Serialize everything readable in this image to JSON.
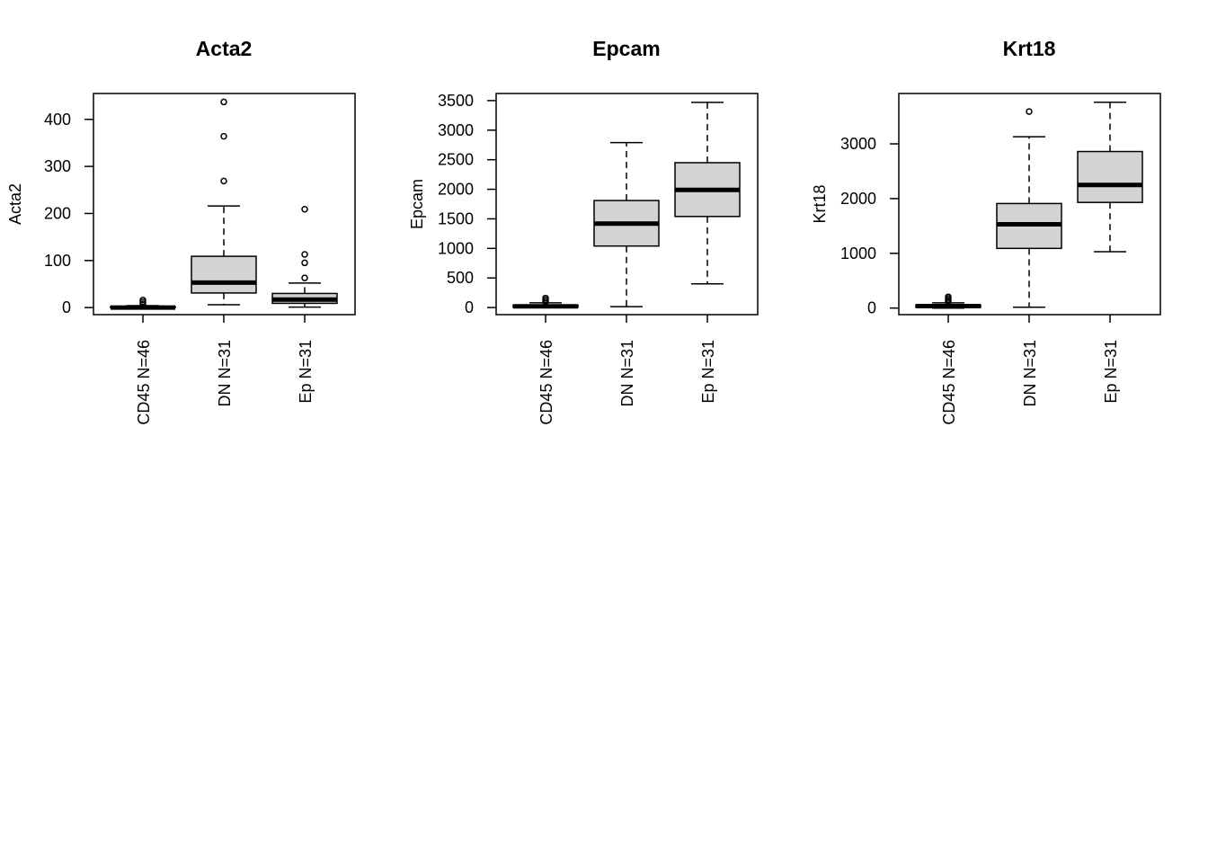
{
  "style": {
    "box_fill": "#d3d3d3",
    "line_color": "#000000",
    "background": "#ffffff"
  },
  "chart_data": [
    {
      "type": "boxplot",
      "title": "Acta2",
      "xlabel": "",
      "ylabel": "Acta2",
      "ylim": [
        -15,
        455
      ],
      "yticks": [
        0,
        100,
        200,
        300,
        400
      ],
      "ytick_labels": [
        "0",
        "100",
        "200",
        "300",
        "400"
      ],
      "categories": [
        "CD45 N=46",
        "DN N=31",
        "Ep N=31"
      ],
      "boxes": [
        {
          "whisker_low": 0,
          "q1": 0,
          "median": 0,
          "q3": 2,
          "whisker_high": 4,
          "outliers": [
            8,
            12,
            16
          ]
        },
        {
          "whisker_low": 6,
          "q1": 31,
          "median": 53,
          "q3": 109,
          "whisker_high": 216,
          "outliers": [
            269,
            364,
            437
          ]
        },
        {
          "whisker_low": 1,
          "q1": 9,
          "median": 17,
          "q3": 30,
          "whisker_high": 52,
          "outliers": [
            63,
            95,
            113,
            209
          ]
        }
      ]
    },
    {
      "type": "boxplot",
      "title": "Epcam",
      "xlabel": "",
      "ylabel": "Epcam",
      "ylim": [
        -120,
        3620
      ],
      "yticks": [
        0,
        500,
        1000,
        1500,
        2000,
        2500,
        3000,
        3500
      ],
      "ytick_labels": [
        "0",
        "500",
        "1000",
        "1500",
        "2000",
        "2500",
        "3000",
        "3500"
      ],
      "categories": [
        "CD45 N=46",
        "DN N=31",
        "Ep N=31"
      ],
      "boxes": [
        {
          "whisker_low": 0,
          "q1": 5,
          "median": 20,
          "q3": 40,
          "whisker_high": 80,
          "outliers": [
            100,
            130,
            160
          ]
        },
        {
          "whisker_low": 15,
          "q1": 1040,
          "median": 1420,
          "q3": 1810,
          "whisker_high": 2790,
          "outliers": []
        },
        {
          "whisker_low": 400,
          "q1": 1540,
          "median": 1990,
          "q3": 2450,
          "whisker_high": 3470,
          "outliers": []
        }
      ]
    },
    {
      "type": "boxplot",
      "title": "Krt18",
      "xlabel": "",
      "ylabel": "Krt18",
      "ylim": [
        -120,
        3920
      ],
      "yticks": [
        0,
        1000,
        2000,
        3000
      ],
      "ytick_labels": [
        "0",
        "1000",
        "2000",
        "3000"
      ],
      "categories": [
        "CD45 N=46",
        "DN N=31",
        "Ep N=31"
      ],
      "boxes": [
        {
          "whisker_low": 0,
          "q1": 15,
          "median": 35,
          "q3": 55,
          "whisker_high": 95,
          "outliers": [
            120,
            145,
            175,
            205
          ]
        },
        {
          "whisker_low": 15,
          "q1": 1090,
          "median": 1530,
          "q3": 1910,
          "whisker_high": 3130,
          "outliers": [
            3590
          ]
        },
        {
          "whisker_low": 1030,
          "q1": 1930,
          "median": 2250,
          "q3": 2860,
          "whisker_high": 3760,
          "outliers": []
        }
      ]
    }
  ]
}
